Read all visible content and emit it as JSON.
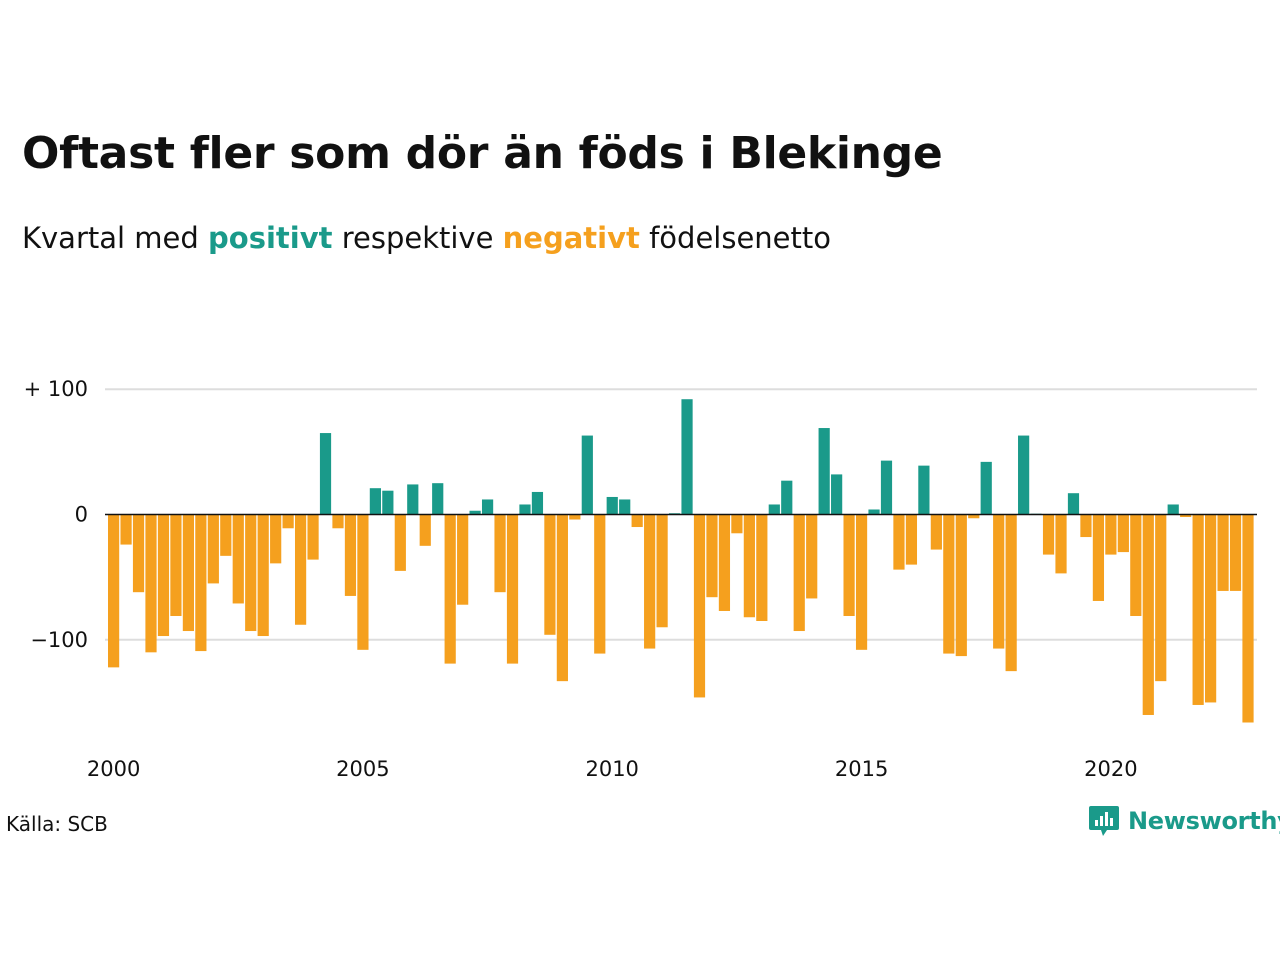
{
  "title": "Oftast fler som dör än föds i Blekinge",
  "subtitle": {
    "prefix": "Kvartal med ",
    "positive": "positivt",
    "middle": " respektive ",
    "negative": "negativt",
    "suffix": " födelsenetto"
  },
  "source": "Källa: SCB",
  "brand": {
    "name": "Newsworthy",
    "icon": "newsworthy-logo-icon"
  },
  "colors": {
    "positive": "#1a9a8a",
    "negative": "#f5a01e",
    "grid": "#dddddd",
    "axis": "#111111"
  },
  "chart_data": {
    "type": "bar",
    "start_year": 2000,
    "categories_note": "",
    "x_ticks": [
      "2000",
      "2005",
      "2010",
      "2015",
      "2020"
    ],
    "y_ticks": [
      {
        "value": 100,
        "label": "+ 100"
      },
      {
        "value": 0,
        "label": "0"
      },
      {
        "value": -100,
        "label": "−100"
      }
    ],
    "ylim": [
      -170,
      100
    ],
    "values": [
      -122,
      -24,
      -62,
      -110,
      -97,
      -81,
      -93,
      -109,
      -55,
      -33,
      -71,
      -93,
      -97,
      -39,
      -11,
      -88,
      -36,
      65,
      -11,
      -65,
      -108,
      21,
      19,
      -45,
      24,
      -25,
      25,
      -119,
      -72,
      3,
      12,
      -62,
      -119,
      8,
      18,
      -96,
      -133,
      -4,
      63,
      -111,
      14,
      12,
      -10,
      -107,
      -90,
      1,
      92,
      -146,
      -66,
      -77,
      -15,
      -82,
      -85,
      8,
      27,
      -93,
      -67,
      69,
      32,
      -81,
      -108,
      4,
      43,
      -44,
      -40,
      39,
      -28,
      -111,
      -113,
      -3,
      42,
      -107,
      -125,
      63,
      0,
      -32,
      -47,
      17,
      -18,
      -69,
      -32,
      -30,
      -81,
      -160,
      -133,
      8,
      -2,
      -152,
      -150,
      -61,
      -61,
      -166
    ]
  }
}
